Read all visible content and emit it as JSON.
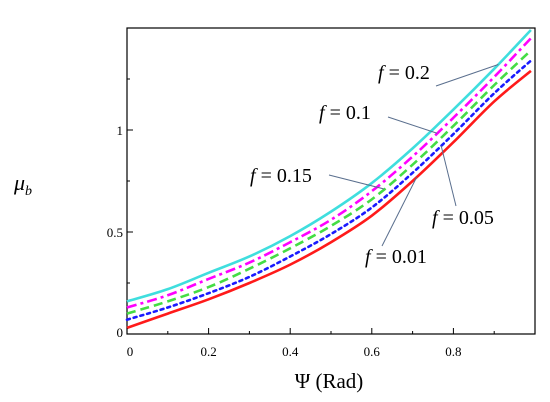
{
  "chart_data": {
    "type": "line",
    "title": "",
    "xlabel": "Ψ  (Rad)",
    "ylabel": "μb",
    "ylabel_main": "μ",
    "ylabel_sub": "b",
    "xlim": [
      0,
      1.0
    ],
    "ylim": [
      0,
      1.5
    ],
    "x_ticks": [
      0,
      0.2,
      0.4,
      0.6,
      0.8
    ],
    "x_tick_labels": [
      "0",
      "0.2",
      "0.4",
      "0.6",
      "0.8"
    ],
    "y_ticks": [
      0,
      0.5,
      1
    ],
    "y_tick_labels": [
      "0",
      "0.5",
      "1"
    ],
    "grid": false,
    "legend": "none",
    "x": [
      0,
      0.1,
      0.2,
      0.3,
      0.4,
      0.5,
      0.6,
      0.7,
      0.8,
      0.9,
      0.99
    ],
    "series": [
      {
        "name": "f = 0.2",
        "color": "#3fdede",
        "dash": "solid",
        "values": [
          0.16,
          0.22,
          0.3,
          0.38,
          0.48,
          0.6,
          0.74,
          0.91,
          1.1,
          1.3,
          1.49
        ]
      },
      {
        "name": "f = 0.1",
        "color": "#ff00ff",
        "dash": "dashdot",
        "values": [
          0.13,
          0.19,
          0.27,
          0.35,
          0.45,
          0.56,
          0.7,
          0.87,
          1.06,
          1.26,
          1.45
        ]
      },
      {
        "name": "f = 0.15",
        "color": "#44dd44",
        "dash": "dash",
        "values": [
          0.1,
          0.16,
          0.23,
          0.32,
          0.42,
          0.53,
          0.66,
          0.83,
          1.02,
          1.22,
          1.39
        ]
      },
      {
        "name": "f = 0.05",
        "color": "#1a1aff",
        "dash": "dot",
        "values": [
          0.07,
          0.13,
          0.2,
          0.28,
          0.38,
          0.49,
          0.62,
          0.79,
          0.98,
          1.18,
          1.34
        ]
      },
      {
        "name": "f = 0.01",
        "color": "#ff1a1a",
        "dash": "solid",
        "values": [
          0.03,
          0.1,
          0.17,
          0.25,
          0.34,
          0.45,
          0.58,
          0.75,
          0.94,
          1.14,
          1.29
        ]
      }
    ],
    "annotations": [
      {
        "text": "f = 0.2",
        "var": "f",
        "rest": " = 0.2",
        "series": 0,
        "at_x": 0.91
      },
      {
        "text": "f = 0.1",
        "var": "f",
        "rest": " = 0.1",
        "series": 1,
        "at_x": 0.76
      },
      {
        "text": "f = 0.15",
        "var": "f",
        "rest": " = 0.15",
        "series": 2,
        "at_x": 0.63
      },
      {
        "text": "f = 0.05",
        "var": "f",
        "rest": " = 0.05",
        "series": 3,
        "at_x": 0.77
      },
      {
        "text": "f = 0.01",
        "var": "f",
        "rest": " = 0.01",
        "series": 4,
        "at_x": 0.71
      }
    ]
  }
}
